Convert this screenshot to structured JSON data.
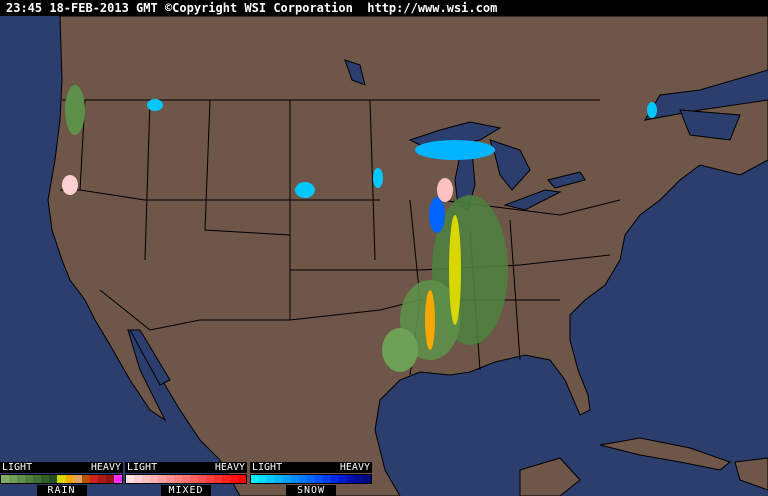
{
  "header": {
    "timestamp": "23:45 18-FEB-2013 GMT",
    "copyright": "©Copyright WSI Corporation",
    "url": "http://www.wsi.com"
  },
  "colors": {
    "ocean": "#2c3e6e",
    "land": "#6e5648",
    "borders": "#000000"
  },
  "legend": [
    {
      "name": "RAIN",
      "light": "LIGHT",
      "heavy": "HEAVY",
      "colors": [
        "#7fae62",
        "#6ea055",
        "#5e9049",
        "#4e803e",
        "#3e7033",
        "#2e6028",
        "#22501e",
        "#d8d800",
        "#f4a800",
        "#e0a060",
        "#b85000",
        "#d02020",
        "#b01818",
        "#901414",
        "#ff30ff"
      ]
    },
    {
      "name": "MIXED",
      "light": "LIGHT",
      "heavy": "HEAVY",
      "colors": [
        "#ffe0e0",
        "#ffd0d0",
        "#ffc0c0",
        "#ffb0b0",
        "#ffa0a0",
        "#ff9090",
        "#ff8080",
        "#ff7070",
        "#ff6060",
        "#ff5050",
        "#ff4040",
        "#ff3030",
        "#ff2020",
        "#ff1010",
        "#ff0000"
      ]
    },
    {
      "name": "SNOW",
      "light": "LIGHT",
      "heavy": "HEAVY",
      "colors": [
        "#00f0ff",
        "#00dcff",
        "#00c8ff",
        "#00b4ff",
        "#00a0ff",
        "#008cff",
        "#0078ff",
        "#0064ff",
        "#0050ff",
        "#003cf0",
        "#0028e0",
        "#0018d0",
        "#0010b0",
        "#000c98",
        "#000880"
      ]
    }
  ]
}
